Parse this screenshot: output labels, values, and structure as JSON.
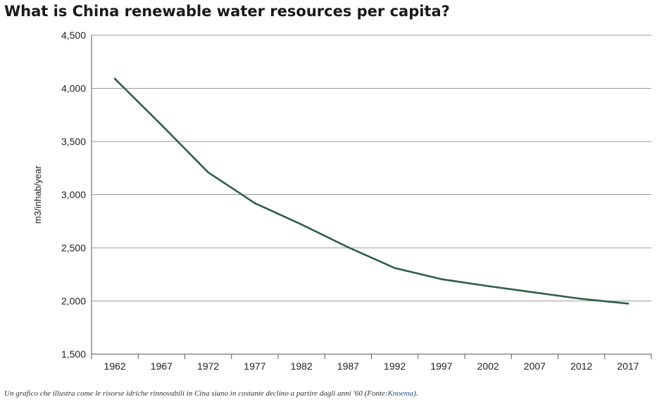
{
  "chart_data": {
    "type": "line",
    "title": "What is China renewable water resources per capita?",
    "ylabel": "m3/inhab/year",
    "xlabel": "",
    "categories": [
      "1962",
      "1967",
      "1972",
      "1977",
      "1982",
      "1987",
      "1992",
      "1997",
      "2002",
      "2007",
      "2012",
      "2017"
    ],
    "series": [
      {
        "values": [
          4090,
          3655,
          3210,
          2920,
          2720,
          2505,
          2310,
          2205,
          2140,
          2080,
          2020,
          1975
        ]
      }
    ],
    "ylim": [
      1500,
      4500
    ],
    "yticks": [
      1500,
      2000,
      2500,
      3000,
      3500,
      4000,
      4500
    ],
    "ytick_labels": [
      "1,500",
      "2,000",
      "2,500",
      "3,000",
      "3,500",
      "4,000",
      "4,500"
    ],
    "grid": true,
    "line_color": "#2e5e45",
    "grid_color": "#9a9a9a"
  },
  "caption": {
    "text": "Un grafico che illustra come le risorse idriche rinnovabili in Cina siano in costante declino a partire dagli anni '60 (Fonte:",
    "source": "Knoema",
    "end": ")."
  }
}
